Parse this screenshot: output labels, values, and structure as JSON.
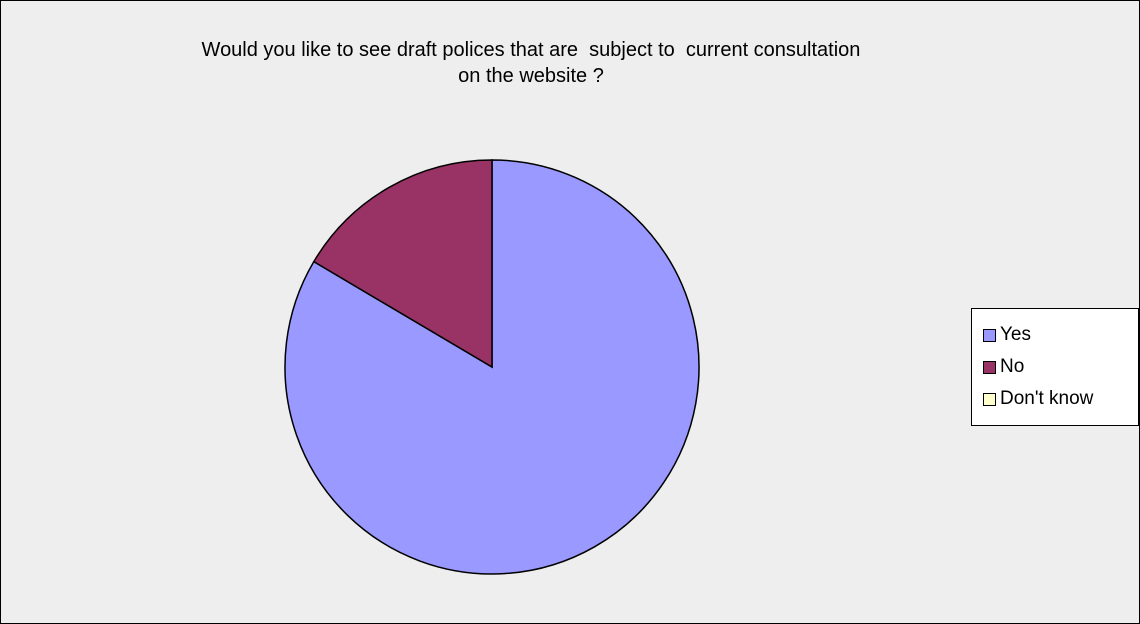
{
  "chart_data": {
    "type": "pie",
    "title": "Would you like to see draft polices that are  subject to  current consultation\non the website ?",
    "categories": [
      "Yes",
      "No",
      "Don't know"
    ],
    "values": [
      83.5,
      16.5,
      0
    ],
    "unit": "percent",
    "colors": [
      "#9999ff",
      "#993366",
      "#ffffcc"
    ],
    "start_angle_deg": 0,
    "direction": "clockwise",
    "legend_position": "right",
    "background_color": "#eeeeee"
  }
}
